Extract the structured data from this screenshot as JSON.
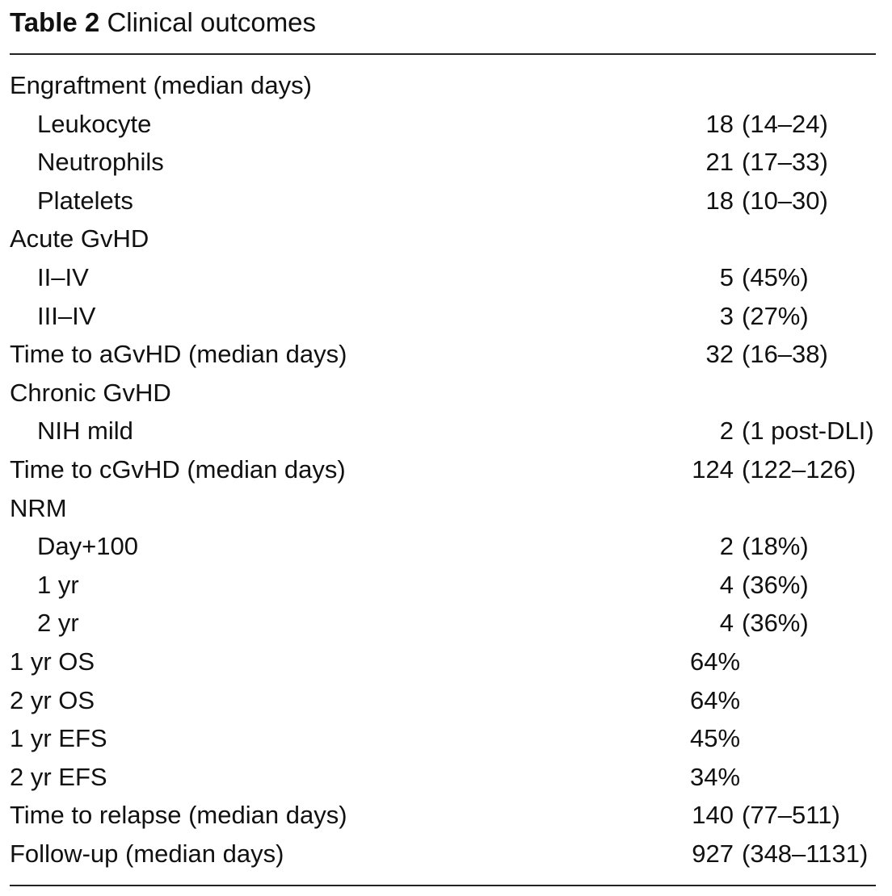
{
  "caption": {
    "label": "Table 2",
    "title": "Clinical outcomes"
  },
  "rows": [
    {
      "label": "Engraftment (median days)",
      "lead": "",
      "rest": "",
      "indent": false
    },
    {
      "label": "Leukocyte",
      "lead": "18",
      "rest": "(14–24)",
      "indent": true
    },
    {
      "label": "Neutrophils",
      "lead": "21",
      "rest": "(17–33)",
      "indent": true
    },
    {
      "label": "Platelets",
      "lead": "18",
      "rest": "(10–30)",
      "indent": true
    },
    {
      "label": "Acute GvHD",
      "lead": "",
      "rest": "",
      "indent": false
    },
    {
      "label": "II–IV",
      "lead": "5",
      "rest": "(45%)",
      "indent": true
    },
    {
      "label": "III–IV",
      "lead": "3",
      "rest": "(27%)",
      "indent": true
    },
    {
      "label": "Time to aGvHD (median days)",
      "lead": "32",
      "rest": "(16–38)",
      "indent": false
    },
    {
      "label": "Chronic GvHD",
      "lead": "",
      "rest": "",
      "indent": false
    },
    {
      "label": "NIH mild",
      "lead": "2",
      "rest": "(1 post-DLI)",
      "indent": true
    },
    {
      "label": "Time to cGvHD (median days)",
      "lead": "124",
      "rest": "(122–126)",
      "indent": false
    },
    {
      "label": "NRM",
      "lead": "",
      "rest": "",
      "indent": false
    },
    {
      "label": "Day+100",
      "lead": "2",
      "rest": "(18%)",
      "indent": true
    },
    {
      "label": "1 yr",
      "lead": "4",
      "rest": "(36%)",
      "indent": true
    },
    {
      "label": "2 yr",
      "lead": "4",
      "rest": "(36%)",
      "indent": true
    },
    {
      "label": "1 yr OS",
      "lead": "64%",
      "rest": "",
      "indent": false
    },
    {
      "label": "2 yr OS",
      "lead": "64%",
      "rest": "",
      "indent": false
    },
    {
      "label": "1 yr EFS",
      "lead": "45%",
      "rest": "",
      "indent": false
    },
    {
      "label": "2 yr EFS",
      "lead": "34%",
      "rest": "",
      "indent": false
    },
    {
      "label": "Time to relapse (median days)",
      "lead": "140",
      "rest": "(77–511)",
      "indent": false
    },
    {
      "label": "Follow-up (median days)",
      "lead": "927",
      "rest": "(348–1131)",
      "indent": false
    }
  ]
}
